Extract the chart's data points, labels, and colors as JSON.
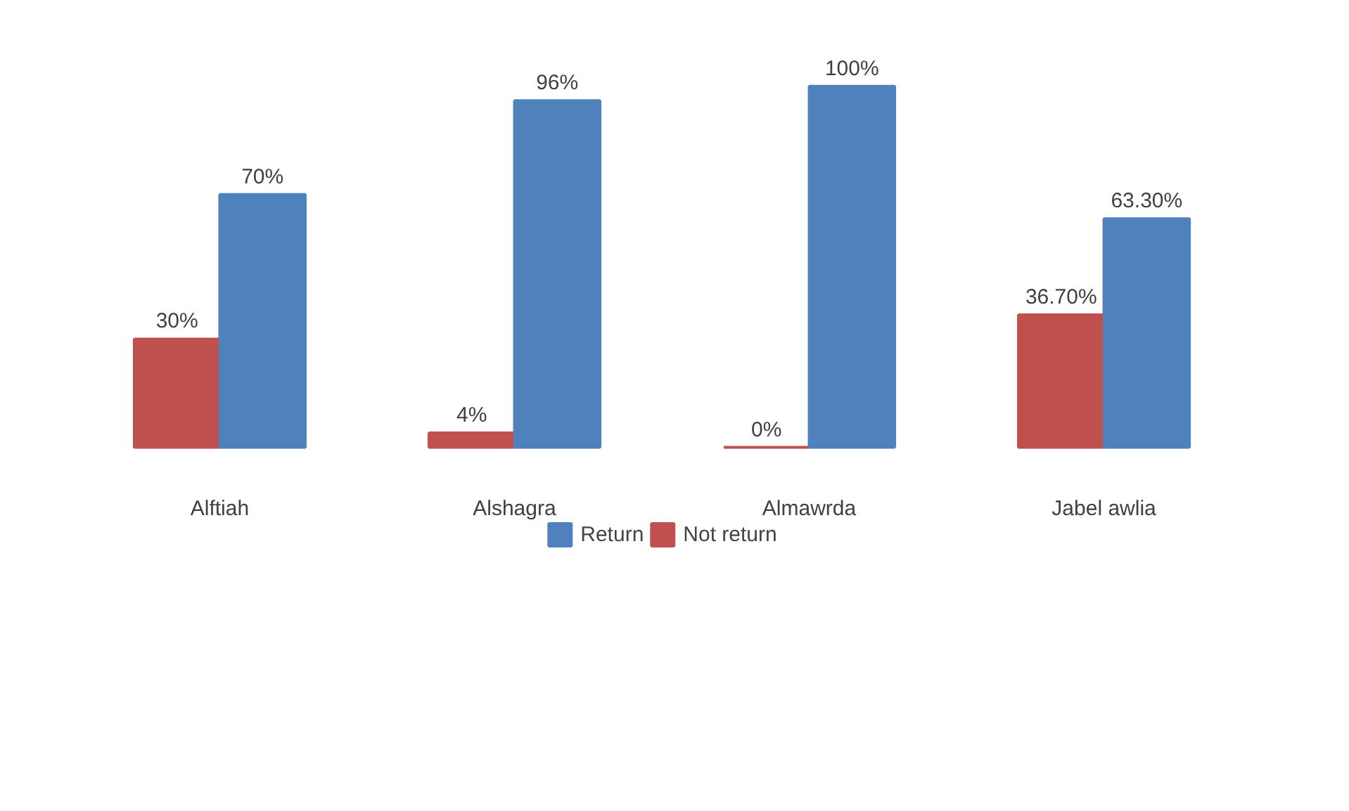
{
  "chart_data": {
    "type": "bar",
    "categories": [
      "Alftiah",
      "Alshagra",
      "Almawrda",
      "Jabel awlia"
    ],
    "series": [
      {
        "name": "Not return",
        "color": "#c0504d",
        "values": [
          30,
          4,
          0,
          36.7
        ],
        "value_labels": [
          "30%",
          "4%",
          "0%",
          "36.70%"
        ]
      },
      {
        "name": "Return",
        "color": "#4f81bd",
        "values": [
          70,
          96,
          100,
          63.3
        ],
        "value_labels": [
          "70%",
          "96%",
          "100%",
          "63.30%"
        ]
      }
    ],
    "legend": "bottom"
  }
}
